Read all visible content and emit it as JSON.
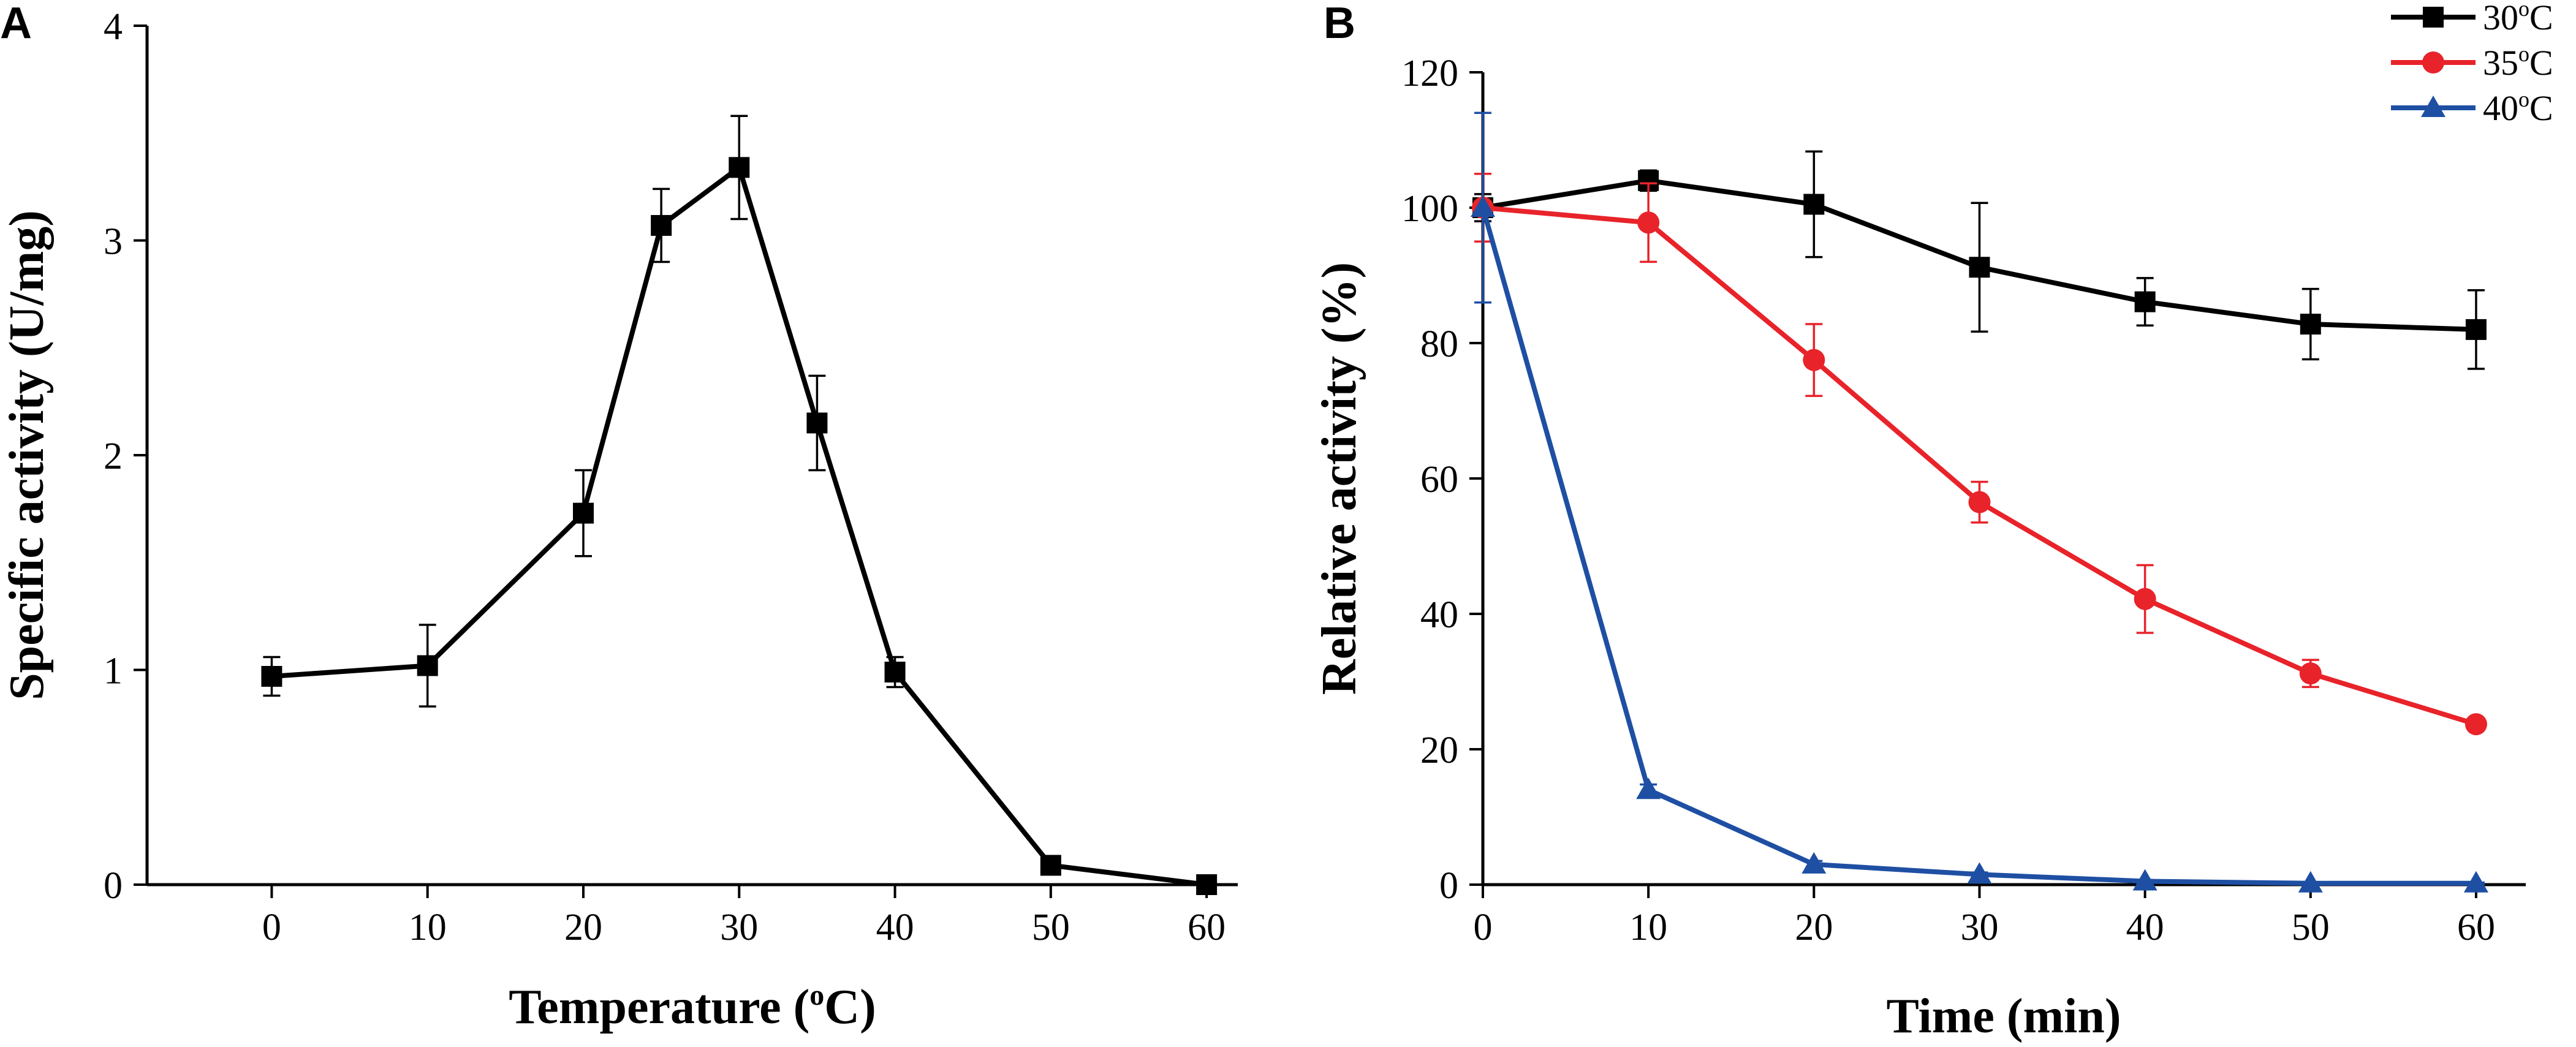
{
  "chart_data": [
    {
      "panel": "A",
      "type": "line",
      "title": "",
      "xlabel": "Temperature (",
      "xlabel_sup": "o",
      "xlabel_end": "C)",
      "ylabel": "Specific activity (U/mg)",
      "xlim": [
        -8,
        62
      ],
      "ylim": [
        0,
        4
      ],
      "xticks": [
        0,
        10,
        20,
        30,
        40,
        50,
        60
      ],
      "yticks": [
        0,
        1,
        2,
        3,
        4
      ],
      "grid": false,
      "series": [
        {
          "name": "Specific activity",
          "color": "#000000",
          "marker": "square",
          "x": [
            0,
            10,
            20,
            25,
            30,
            35,
            40,
            50,
            60
          ],
          "y": [
            0.97,
            1.02,
            1.73,
            3.07,
            3.34,
            2.15,
            0.99,
            0.09,
            0.0
          ],
          "err": [
            0.09,
            0.19,
            0.2,
            0.17,
            0.24,
            0.22,
            0.07,
            0.0,
            0.0
          ]
        }
      ]
    },
    {
      "panel": "B",
      "type": "line",
      "title": "",
      "xlabel": "Time (min)",
      "ylabel": "Relative activity (%)",
      "xlim": [
        0,
        63
      ],
      "ylim": [
        0,
        120
      ],
      "xticks": [
        0,
        10,
        20,
        30,
        40,
        50,
        60
      ],
      "yticks": [
        0,
        20,
        40,
        60,
        80,
        100,
        120
      ],
      "grid": false,
      "legend_position": "top-right",
      "series": [
        {
          "name": "30",
          "unit": "C",
          "color": "#000000",
          "marker": "square",
          "x": [
            0,
            10,
            20,
            30,
            40,
            50,
            60
          ],
          "y": [
            100,
            104,
            100.5,
            91.2,
            86.1,
            82.8,
            82
          ],
          "err": [
            2,
            1.5,
            7.8,
            9.5,
            3.5,
            5.2,
            5.8
          ]
        },
        {
          "name": "35",
          "unit": "C",
          "color": "#e8232a",
          "marker": "circle",
          "x": [
            0,
            10,
            20,
            30,
            40,
            50,
            60
          ],
          "y": [
            100,
            97.8,
            77.5,
            56.5,
            42.2,
            31.2,
            23.7
          ],
          "err": [
            5,
            5.8,
            5.3,
            3,
            5,
            2,
            0
          ]
        },
        {
          "name": "40",
          "unit": "C",
          "color": "#1e4fa3",
          "marker": "triangle",
          "x": [
            0,
            10,
            20,
            30,
            40,
            50,
            60
          ],
          "y": [
            100,
            14,
            3,
            1.5,
            0.5,
            0.2,
            0.2
          ],
          "err": [
            14,
            0.8,
            0.5,
            0.3,
            0.2,
            0.1,
            0.1
          ]
        }
      ]
    }
  ]
}
